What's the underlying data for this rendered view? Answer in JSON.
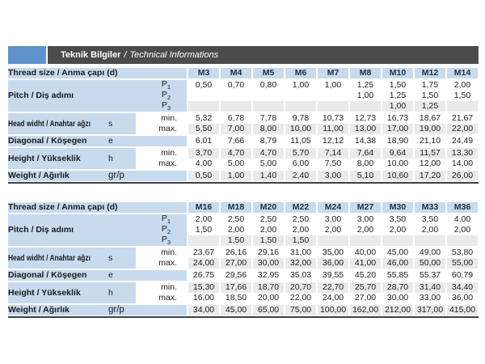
{
  "title": {
    "main": "Teknik Bilgiler",
    "separator": "/",
    "italic": "Technical Informations"
  },
  "colors": {
    "accent_blue": "#5f93cb",
    "bar_dark": "#4b4b4b",
    "cell_blue": "#c7daee",
    "stripe_gray": "#e9eaec",
    "thick_line": "#3f3f3f"
  },
  "labels": {
    "thread_size": "Thread size / Anma çapı (d)",
    "pitch": "Pitch / Diş adımı",
    "pitch_symbol": "P",
    "pitch_subscripts": [
      "1",
      "2",
      "3"
    ],
    "head_width": "Head widht / Anahtar ağzı",
    "head_width_symbol": "s",
    "diagonal": "Diagonal / Köşegen",
    "diagonal_symbol": "e",
    "height": "Height / Yükseklik",
    "height_symbol": "h",
    "weight": "Weight / Ağırlık",
    "weight_symbol": "gr/p",
    "min": "min.",
    "max": "max."
  },
  "tables": [
    {
      "columns": [
        "M3",
        "M4",
        "M5",
        "M6",
        "M7",
        "M8",
        "M10",
        "M12",
        "M14"
      ],
      "rows": {
        "p1": [
          "0,50",
          "0,70",
          "0,80",
          "1,00",
          "1,00",
          "1,25",
          "1,50",
          "1,75",
          "2,00"
        ],
        "p2": [
          "",
          "",
          "",
          "",
          "",
          "1,00",
          "1,25",
          "1,50",
          "1,50"
        ],
        "p3": [
          "",
          "",
          "",
          "",
          "",
          "",
          "1,00",
          "1,25",
          ""
        ],
        "s_min": [
          "5,32",
          "6,78",
          "7,78",
          "9,78",
          "10,73",
          "12,73",
          "16,73",
          "18,67",
          "21,67"
        ],
        "s_max": [
          "5,50",
          "7,00",
          "8,00",
          "10,00",
          "11,00",
          "13,00",
          "17,00",
          "19,00",
          "22,00"
        ],
        "e": [
          "6,01",
          "7,66",
          "8,79",
          "11,05",
          "12,12",
          "14,38",
          "18,90",
          "21,10",
          "24,49"
        ],
        "h_min": [
          "3,70",
          "4,70",
          "4,70",
          "5,70",
          "7,14",
          "7,64",
          "9,64",
          "11,57",
          "13,30"
        ],
        "h_max": [
          "4,00",
          "5,00",
          "5,00",
          "6,00",
          "7,50",
          "8,00",
          "10,00",
          "12,00",
          "14,00"
        ],
        "weight": [
          "0,50",
          "1,00",
          "1,40",
          "2,40",
          "3,00",
          "5,10",
          "10,60",
          "17,20",
          "26,00"
        ]
      }
    },
    {
      "columns": [
        "M16",
        "M18",
        "M20",
        "M22",
        "M24",
        "M27",
        "M30",
        "M33",
        "M36"
      ],
      "rows": {
        "p1": [
          "2,00",
          "2,50",
          "2,50",
          "2,50",
          "3,00",
          "3,00",
          "3,50",
          "3,50",
          "4,00"
        ],
        "p2": [
          "1,50",
          "2,00",
          "2,00",
          "2,00",
          "2,00",
          "2,00",
          "2,00",
          "2,00",
          "2,00"
        ],
        "p3": [
          "",
          "1,50",
          "1,50",
          "1,50",
          "",
          "",
          "",
          "",
          ""
        ],
        "s_min": [
          "23,67",
          "26,16",
          "29,16",
          "31,00",
          "35,00",
          "40,00",
          "45,00",
          "49,00",
          "53,80"
        ],
        "s_max": [
          "24,00",
          "27,00",
          "30,00",
          "32,00",
          "36,00",
          "41,00",
          "46,00",
          "50,00",
          "55,00"
        ],
        "e": [
          "26,75",
          "29,56",
          "32,95",
          "35,03",
          "39,55",
          "45,20",
          "55,85",
          "55,37",
          "60,79"
        ],
        "h_min": [
          "15,30",
          "17,66",
          "18,70",
          "20,70",
          "22,70",
          "25,70",
          "28,70",
          "31,40",
          "34,40"
        ],
        "h_max": [
          "16,00",
          "18,50",
          "20,00",
          "22,00",
          "24,00",
          "27,00",
          "30,00",
          "33,00",
          "36,00"
        ],
        "weight": [
          "34,00",
          "45,00",
          "65,00",
          "75,00",
          "100,00",
          "162,00",
          "212,00",
          "317,00",
          "415,00"
        ]
      }
    }
  ]
}
